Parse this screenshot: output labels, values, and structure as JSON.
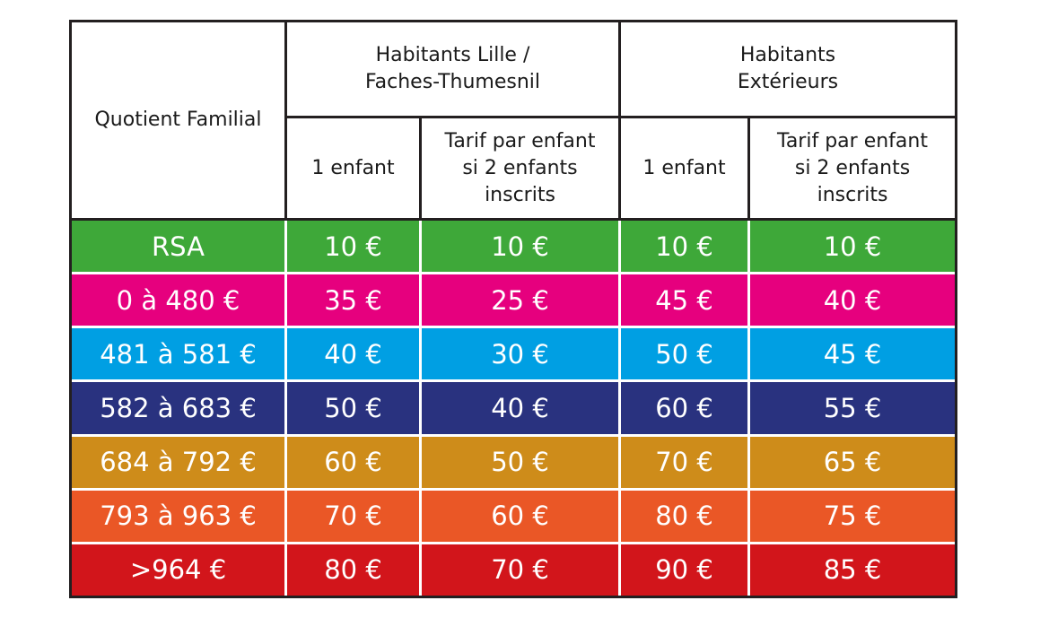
{
  "header": {
    "qf_label": "Quotient Familial",
    "lille_line1": "Habitants Lille /",
    "lille_line2": "Faches-Thumesnil",
    "ext_line1": "Habitants",
    "ext_line2": "Extérieurs",
    "one_child": "1 enfant",
    "two_line1": "Tarif par enfant",
    "two_line2": "si 2  enfants",
    "two_line3": "inscrits"
  },
  "rows": [
    {
      "qf": "RSA",
      "lille_1": "10 €",
      "lille_2": "10 €",
      "ext_1": "10 €",
      "ext_2": "10 €",
      "color": "#3ea839"
    },
    {
      "qf": "0 à 480 €",
      "lille_1": "35 €",
      "lille_2": "25 €",
      "ext_1": "45 €",
      "ext_2": "40 €",
      "color": "#e6007e"
    },
    {
      "qf": "481 à 581 €",
      "lille_1": "40 €",
      "lille_2": "30 €",
      "ext_1": "50 €",
      "ext_2": "45 €",
      "color": "#009fe3"
    },
    {
      "qf": "582 à 683 €",
      "lille_1": "50 €",
      "lille_2": "40 €",
      "ext_1": "60 €",
      "ext_2": "55 €",
      "color": "#29327f"
    },
    {
      "qf": "684 à 792 €",
      "lille_1": "60 €",
      "lille_2": "50 €",
      "ext_1": "70 €",
      "ext_2": "65 €",
      "color": "#ce8c1a"
    },
    {
      "qf": "793 à 963 €",
      "lille_1": "70 €",
      "lille_2": "60 €",
      "ext_1": "80 €",
      "ext_2": "75 €",
      "color": "#ea5726"
    },
    {
      "qf": ">964 €",
      "lille_1": "80 €",
      "lille_2": "70 €",
      "ext_1": "90 €",
      "ext_2": "85 €",
      "color": "#d2151b"
    }
  ]
}
